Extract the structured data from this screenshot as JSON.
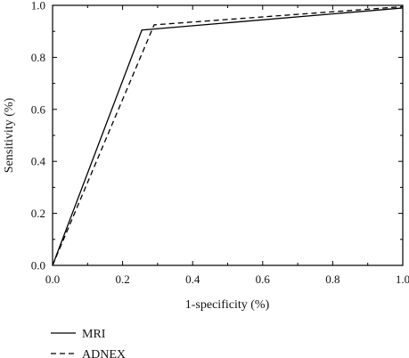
{
  "chart_data": {
    "type": "line",
    "xlabel": "1-specificity (%)",
    "ylabel": "Sensitivity (%)",
    "xlim": [
      0.0,
      1.0
    ],
    "ylim": [
      0.0,
      1.0
    ],
    "xticks": [
      "0.0",
      "0.2",
      "0.4",
      "0.6",
      "0.8",
      "1.0"
    ],
    "yticks": [
      "0.0",
      "0.2",
      "0.4",
      "0.6",
      "0.8",
      "1.0"
    ],
    "grid": false,
    "legend_position": "bottom-left",
    "series": [
      {
        "name": "MRI",
        "style": "solid",
        "color": "#000000",
        "x": [
          0.0,
          0.255,
          1.0
        ],
        "y": [
          0.0,
          0.905,
          0.99
        ]
      },
      {
        "name": "ADNEX",
        "style": "dashed",
        "color": "#000000",
        "x": [
          0.0,
          0.29,
          1.0
        ],
        "y": [
          0.0,
          0.925,
          0.995
        ]
      }
    ]
  }
}
